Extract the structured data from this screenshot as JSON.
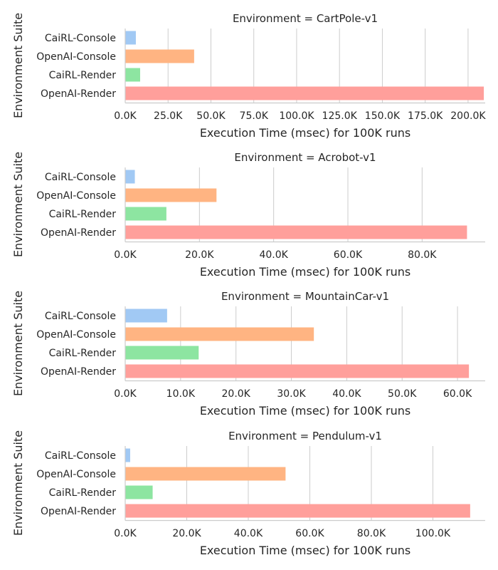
{
  "chart_data": {
    "type": "bar",
    "orientation": "horizontal",
    "grid": "vertical lines",
    "categories": [
      "CaiRL-Console",
      "OpenAI-Console",
      "CaiRL-Render",
      "OpenAI-Render"
    ],
    "colors": [
      "#a1c9f4",
      "#ffb482",
      "#8de5a1",
      "#ff9f9b"
    ],
    "ylabel": "Environment Suite",
    "xlabel": "Execution Time (msec) for 100K runs",
    "panels": [
      {
        "title": "Environment = CartPole-v1",
        "xlim": [
          0,
          210000
        ],
        "xticks": [
          0,
          25000,
          50000,
          75000,
          100000,
          125000,
          150000,
          175000,
          200000
        ],
        "xtick_labels": [
          "0.0K",
          "25.0K",
          "50.0K",
          "75.0K",
          "100.0K",
          "125.0K",
          "150.0K",
          "175.0K",
          "200.0K"
        ],
        "values": [
          6000,
          40000,
          8500,
          209000
        ]
      },
      {
        "title": "Environment = Acrobot-v1",
        "xlim": [
          0,
          97000
        ],
        "xticks": [
          0,
          20000,
          40000,
          60000,
          80000
        ],
        "xtick_labels": [
          "0.0K",
          "20.0K",
          "40.0K",
          "60.0K",
          "80.0K"
        ],
        "values": [
          2500,
          24500,
          11000,
          92000
        ]
      },
      {
        "title": "Environment = MountainCar-v1",
        "xlim": [
          0,
          65000
        ],
        "xticks": [
          0,
          10000,
          20000,
          30000,
          40000,
          50000,
          60000
        ],
        "xtick_labels": [
          "0.0K",
          "10.0K",
          "20.0K",
          "30.0K",
          "40.0K",
          "50.0K",
          "60.0K"
        ],
        "values": [
          7500,
          34000,
          13200,
          62000
        ]
      },
      {
        "title": "Environment = Pendulum-v1",
        "xlim": [
          0,
          117000
        ],
        "xticks": [
          0,
          20000,
          40000,
          60000,
          80000,
          100000
        ],
        "xtick_labels": [
          "0.0K",
          "20.0K",
          "40.0K",
          "60.0K",
          "80.0K",
          "100.0K"
        ],
        "values": [
          1500,
          52000,
          8800,
          112000
        ]
      }
    ]
  }
}
